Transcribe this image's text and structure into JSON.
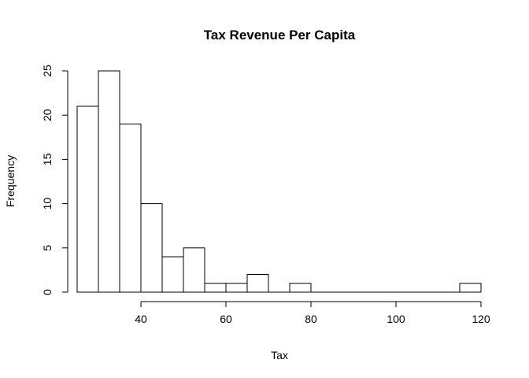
{
  "chart_data": {
    "type": "histogram",
    "title": "Tax Revenue Per Capita",
    "xlabel": "Tax",
    "ylabel": "Frequency",
    "bin_edges": [
      25,
      30,
      35,
      40,
      45,
      50,
      55,
      60,
      65,
      70,
      75,
      80,
      85,
      90,
      95,
      100,
      105,
      110,
      115,
      120
    ],
    "counts": [
      21,
      25,
      19,
      10,
      4,
      5,
      1,
      1,
      2,
      0,
      1,
      0,
      0,
      0,
      0,
      0,
      0,
      0,
      1
    ],
    "xlim": [
      25,
      120
    ],
    "ylim": [
      0,
      25
    ],
    "x_ticks": [
      40,
      60,
      80,
      100,
      120
    ],
    "x_tick_labels": [
      "40",
      "60",
      "80",
      "100",
      "120"
    ],
    "y_ticks": [
      0,
      5,
      10,
      15,
      20,
      25
    ],
    "y_tick_labels": [
      "0",
      "5",
      "10",
      "15",
      "20",
      "25"
    ],
    "grid": false,
    "bar_fill": "#ffffff",
    "bar_stroke": "#000000"
  }
}
